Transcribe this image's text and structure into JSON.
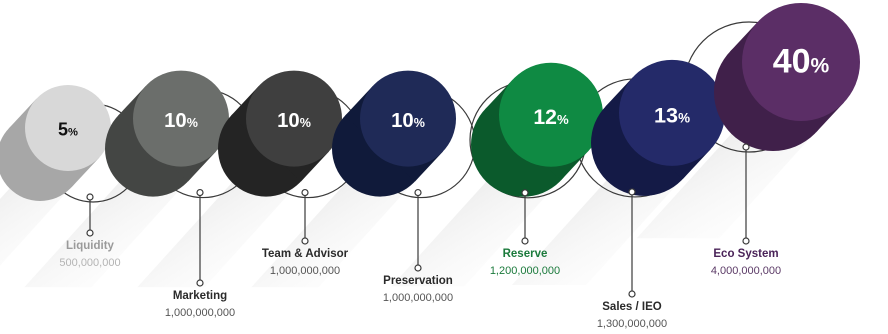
{
  "chart_data": {
    "type": "bar",
    "title": "",
    "categories": [
      "Liquidity",
      "Marketing",
      "Team & Advisor",
      "Preservation",
      "Reserve",
      "Sales / IEO",
      "Eco System"
    ],
    "values": [
      5,
      10,
      10,
      10,
      12,
      13,
      40
    ],
    "value_suffix": "%",
    "amounts": [
      "500,000,000",
      "1,000,000,000",
      "1,000,000,000",
      "1,000,000,000",
      "1,200,000,000",
      "1,300,000,000",
      "4,000,000,000"
    ],
    "colors": {
      "front": [
        "#d8d8d8",
        "#6b6e6b",
        "#3f3f3f",
        "#1f2a57",
        "#0f8a43",
        "#242a69",
        "#5b2e66"
      ],
      "back": [
        "#a7a7a7",
        "#444644",
        "#242424",
        "#101a3a",
        "#0b5a2c",
        "#141a46",
        "#40204a"
      ],
      "value_text": [
        "#111111",
        "#ffffff",
        "#ffffff",
        "#ffffff",
        "#ffffff",
        "#ffffff",
        "#ffffff"
      ],
      "label": [
        "#9a9a9a",
        "#2a2a2a",
        "#2a2a2a",
        "#2a2a2a",
        "#1b7a3c",
        "#2a2a2a",
        "#4a2358"
      ],
      "amount": [
        "#b4b4b4",
        "#555555",
        "#555555",
        "#555555",
        "#1b7a3c",
        "#555555",
        "#5b3a66"
      ]
    }
  }
}
